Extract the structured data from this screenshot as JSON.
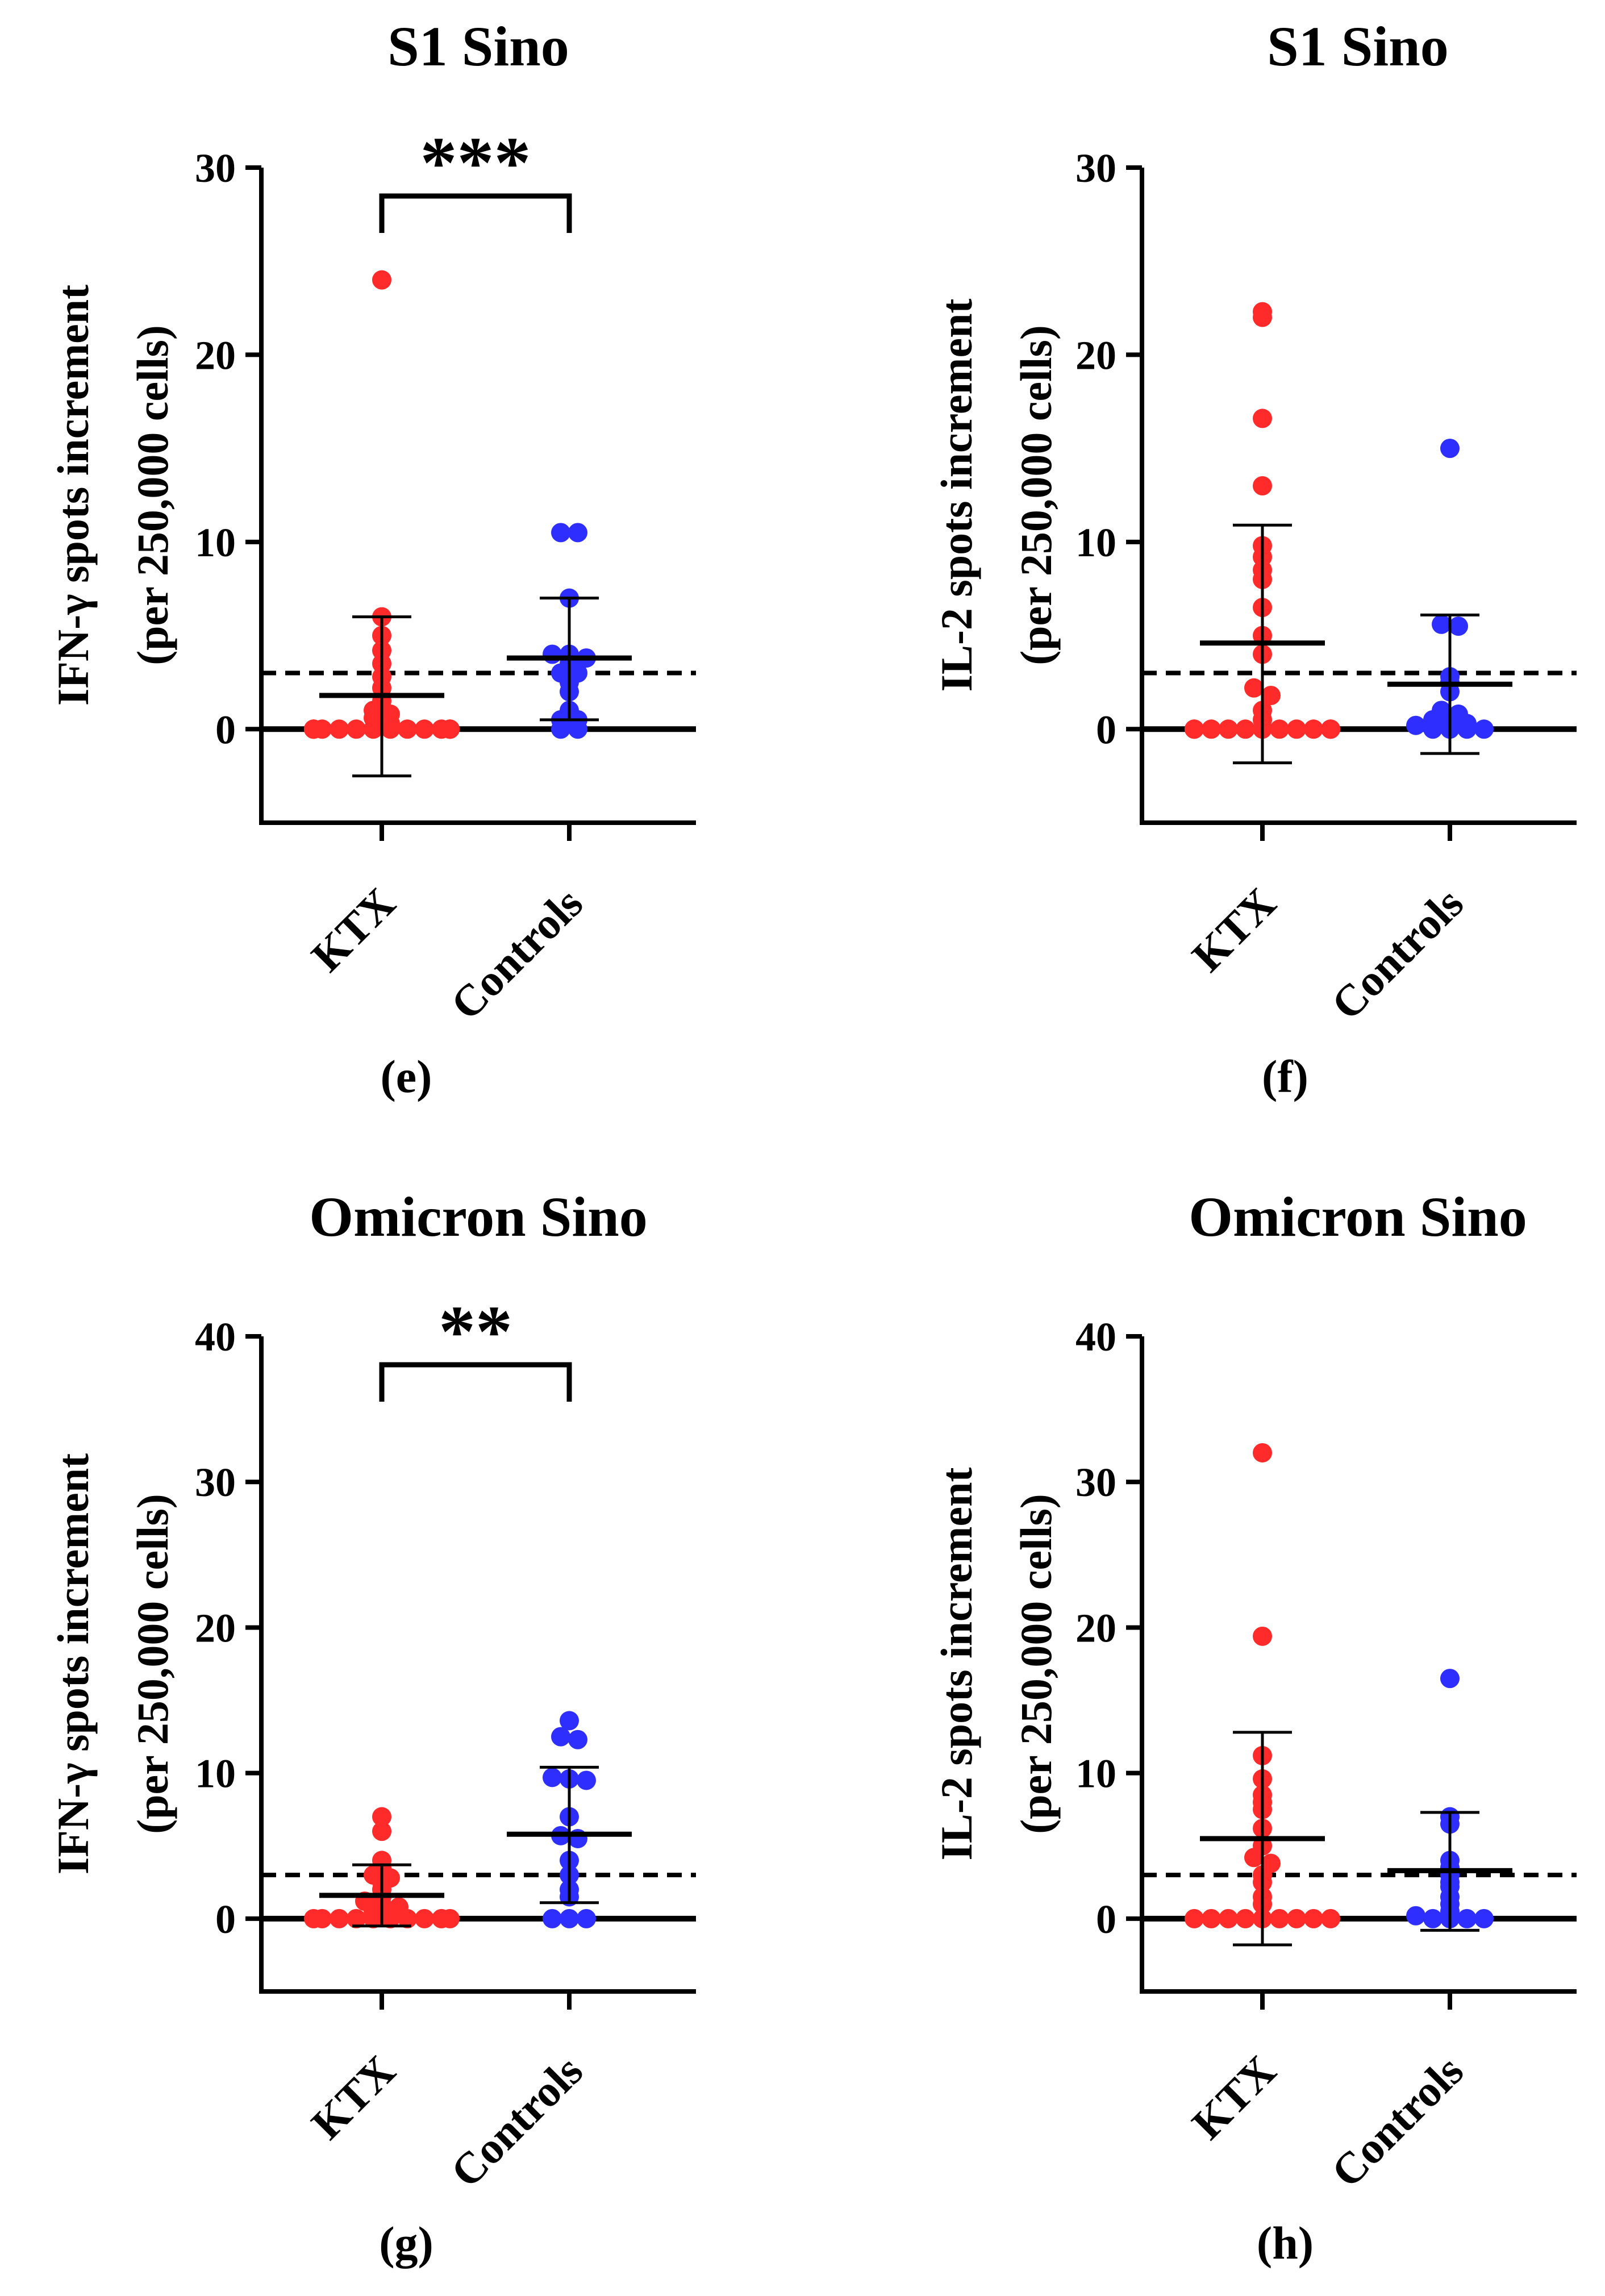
{
  "figure": {
    "colors": {
      "ktx": "#ff2a2a",
      "controls": "#2e2eff",
      "axis": "#000000"
    }
  },
  "chart_data": [
    {
      "type": "scatter",
      "panel": "(e)",
      "title": "S1 Sino",
      "ylabel_line1": "IFN-γ spots increment",
      "ylabel_line2": "(per 250,000 cells)",
      "ylim": [
        -5,
        30
      ],
      "yticks": [
        0,
        10,
        20,
        30
      ],
      "threshold": 3,
      "categories": [
        "KTX",
        "Controls"
      ],
      "significance": "***",
      "series": [
        {
          "name": "KTX",
          "mean": 1.8,
          "sd_low": -2.5,
          "sd_high": 6.0,
          "values": [
            24.0,
            6.0,
            5.0,
            4.2,
            3.5,
            2.8,
            2.2,
            1.5,
            1.0,
            0.8,
            0.6,
            0.3,
            0,
            0,
            0,
            0,
            0,
            0,
            0,
            0,
            0,
            0,
            0,
            0,
            0,
            0,
            0,
            0
          ]
        },
        {
          "name": "Controls",
          "mean": 3.8,
          "sd_low": 0.5,
          "sd_high": 7.0,
          "values": [
            10.5,
            10.5,
            7.0,
            4.0,
            4.0,
            3.8,
            3.5,
            3.0,
            3.0,
            2.5,
            2.0,
            1.0,
            0.5,
            0.5,
            0.0,
            0.0
          ]
        }
      ]
    },
    {
      "type": "scatter",
      "panel": "(f)",
      "title": "S1 Sino",
      "ylabel_line1": "IL-2 spots increment",
      "ylabel_line2": "(per 250,000 cells)",
      "ylim": [
        -5,
        30
      ],
      "yticks": [
        0,
        10,
        20,
        30
      ],
      "threshold": 3,
      "categories": [
        "KTX",
        "Controls"
      ],
      "significance": "",
      "series": [
        {
          "name": "KTX",
          "mean": 4.6,
          "sd_low": -1.8,
          "sd_high": 10.9,
          "values": [
            22.3,
            22.0,
            16.6,
            13.0,
            9.8,
            9.2,
            8.5,
            8.0,
            6.5,
            5.0,
            4.0,
            2.2,
            1.8,
            1.0,
            0.5,
            0,
            0,
            0,
            0,
            0,
            0,
            0,
            0,
            0,
            0,
            0,
            0,
            0
          ]
        },
        {
          "name": "Controls",
          "mean": 2.4,
          "sd_low": -1.3,
          "sd_high": 6.1,
          "values": [
            15.0,
            5.6,
            5.5,
            2.8,
            2.5,
            2.0,
            1.0,
            0.8,
            0.5,
            0.5,
            0.3,
            0.2,
            0,
            0,
            0,
            0
          ]
        }
      ]
    },
    {
      "type": "scatter",
      "panel": "(g)",
      "title": "Omicron Sino",
      "ylabel_line1": "IFN-γ spots increment",
      "ylabel_line2": "(per 250,000 cells)",
      "ylim": [
        -5,
        40
      ],
      "yticks": [
        0,
        10,
        20,
        30,
        40
      ],
      "threshold": 3,
      "categories": [
        "KTX",
        "Controls"
      ],
      "significance": "**",
      "series": [
        {
          "name": "KTX",
          "mean": 1.6,
          "sd_low": -0.5,
          "sd_high": 3.7,
          "values": [
            7.0,
            6.0,
            4.0,
            3.5,
            3.0,
            2.8,
            2.5,
            2.0,
            1.5,
            1.2,
            1.0,
            0.8,
            0.5,
            0.3,
            0,
            0,
            0,
            0,
            0,
            0,
            0,
            0,
            0,
            0
          ]
        },
        {
          "name": "Controls",
          "mean": 5.8,
          "sd_low": 1.1,
          "sd_high": 10.4,
          "values": [
            13.6,
            12.5,
            12.3,
            9.7,
            9.6,
            9.5,
            7.0,
            5.7,
            5.5,
            4.0,
            3.0,
            2.0,
            1.5,
            0.0,
            0.0,
            0.0
          ]
        }
      ]
    },
    {
      "type": "scatter",
      "panel": "(h)",
      "title": "Omicron Sino",
      "ylabel_line1": "IL-2 spots increment",
      "ylabel_line2": "(per 250,000 cells)",
      "ylim": [
        -5,
        40
      ],
      "yticks": [
        0,
        10,
        20,
        30,
        40
      ],
      "threshold": 3,
      "categories": [
        "KTX",
        "Controls"
      ],
      "significance": "",
      "series": [
        {
          "name": "KTX",
          "mean": 5.5,
          "sd_low": -1.8,
          "sd_high": 12.8,
          "values": [
            32.0,
            19.4,
            11.2,
            9.6,
            8.5,
            8.0,
            7.5,
            6.2,
            5.0,
            4.2,
            3.8,
            3.0,
            2.5,
            1.5,
            1.0,
            0,
            0,
            0,
            0,
            0,
            0,
            0,
            0,
            0
          ]
        },
        {
          "name": "Controls",
          "mean": 3.3,
          "sd_low": -0.8,
          "sd_high": 7.3,
          "values": [
            16.5,
            7.0,
            6.5,
            4.0,
            3.5,
            3.0,
            2.5,
            2.2,
            1.5,
            1.0,
            0.5,
            0.2,
            0,
            0,
            0,
            0
          ]
        }
      ]
    }
  ]
}
